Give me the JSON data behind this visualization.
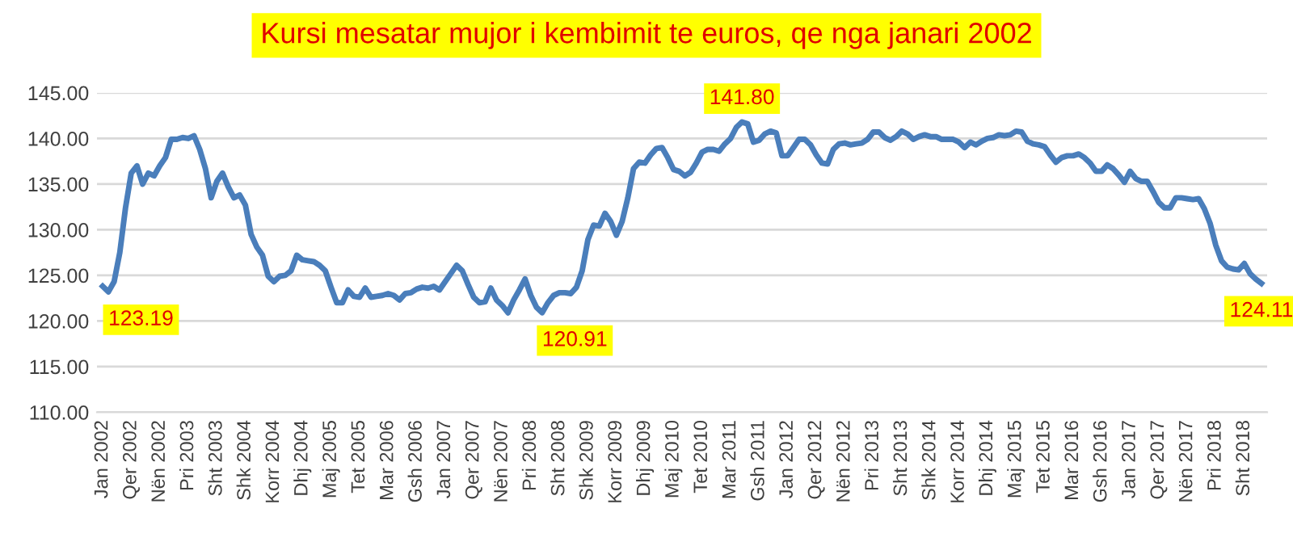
{
  "chart_data": {
    "type": "line",
    "title": "Kursi mesatar mujor i kembimit te euros, qe nga janari 2002",
    "categories": [
      "Jan 2002",
      null,
      null,
      null,
      null,
      "Qer 2002",
      null,
      null,
      null,
      null,
      "Nën 2002",
      null,
      null,
      null,
      null,
      "Pri 2003",
      null,
      null,
      null,
      null,
      "Sht 2003",
      null,
      null,
      null,
      null,
      "Shk 2004",
      null,
      null,
      null,
      null,
      "Korr 2004",
      null,
      null,
      null,
      null,
      "Dhj 2004",
      null,
      null,
      null,
      null,
      "Maj 2005",
      null,
      null,
      null,
      null,
      "Tet 2005",
      null,
      null,
      null,
      null,
      "Mar 2006",
      null,
      null,
      null,
      null,
      "Gsh 2006",
      null,
      null,
      null,
      null,
      "Jan 2007",
      null,
      null,
      null,
      null,
      "Qer 2007",
      null,
      null,
      null,
      null,
      "Nën 2007",
      null,
      null,
      null,
      null,
      "Pri 2008",
      null,
      null,
      null,
      null,
      "Sht 2008",
      null,
      null,
      null,
      null,
      "Shk 2009",
      null,
      null,
      null,
      null,
      "Korr 2009",
      null,
      null,
      null,
      null,
      "Dhj 2009",
      null,
      null,
      null,
      null,
      "Maj 2010",
      null,
      null,
      null,
      null,
      "Tet 2010",
      null,
      null,
      null,
      null,
      "Mar 2011",
      null,
      null,
      null,
      null,
      "Gsh 2011",
      null,
      null,
      null,
      null,
      "Jan 2012",
      null,
      null,
      null,
      null,
      "Qer 2012",
      null,
      null,
      null,
      null,
      "Nën 2012",
      null,
      null,
      null,
      null,
      "Pri 2013",
      null,
      null,
      null,
      null,
      "Sht 2013",
      null,
      null,
      null,
      null,
      "Shk 2014",
      null,
      null,
      null,
      null,
      "Korr 2014",
      null,
      null,
      null,
      null,
      "Dhj 2014",
      null,
      null,
      null,
      null,
      "Maj 2015",
      null,
      null,
      null,
      null,
      "Tet 2015",
      null,
      null,
      null,
      null,
      "Mar 2016",
      null,
      null,
      null,
      null,
      "Gsh 2016",
      null,
      null,
      null,
      null,
      "Jan 2017",
      null,
      null,
      null,
      null,
      "Qer 2017",
      null,
      null,
      null,
      null,
      "Nën 2017",
      null,
      null,
      null,
      null,
      "Pri 2018",
      null,
      null,
      null,
      null,
      "Sht 2018",
      null,
      null,
      null
    ],
    "series": [
      {
        "color": "#4a7ebb",
        "values": [
          123.8,
          123.19,
          124.3,
          127.5,
          132.4,
          136.2,
          137.0,
          135.0,
          136.2,
          135.9,
          137.0,
          137.9,
          139.9,
          139.9,
          140.1,
          140.0,
          140.3,
          138.8,
          136.7,
          133.5,
          135.3,
          136.2,
          134.7,
          133.5,
          133.8,
          132.7,
          129.5,
          128.1,
          127.2,
          124.9,
          124.3,
          124.9,
          125.0,
          125.5,
          127.2,
          126.7,
          126.6,
          126.5,
          126.1,
          125.5,
          123.7,
          122.0,
          122.0,
          123.4,
          122.7,
          122.6,
          123.6,
          122.6,
          122.7,
          122.8,
          123.0,
          122.8,
          122.3,
          123.0,
          123.1,
          123.5,
          123.7,
          123.6,
          123.8,
          123.4,
          124.3,
          125.2,
          126.1,
          125.5,
          124.0,
          122.6,
          122.0,
          122.1,
          123.6,
          122.3,
          121.7,
          120.9,
          122.3,
          123.4,
          124.6,
          122.8,
          121.5,
          120.91,
          122.0,
          122.8,
          123.1,
          123.1,
          123.0,
          123.7,
          125.5,
          128.9,
          130.5,
          130.4,
          131.8,
          130.9,
          129.4,
          130.9,
          133.5,
          136.7,
          137.4,
          137.3,
          138.2,
          138.9,
          139.0,
          137.9,
          136.6,
          136.4,
          135.9,
          136.3,
          137.3,
          138.5,
          138.8,
          138.8,
          138.6,
          139.4,
          140.0,
          141.2,
          141.8,
          141.6,
          139.6,
          139.8,
          140.5,
          140.8,
          140.6,
          138.1,
          138.1,
          139.0,
          139.9,
          139.9,
          139.3,
          138.2,
          137.3,
          137.2,
          138.8,
          139.4,
          139.5,
          139.3,
          139.4,
          139.5,
          139.9,
          140.7,
          140.7,
          140.1,
          139.8,
          140.2,
          140.8,
          140.5,
          139.9,
          140.2,
          140.4,
          140.2,
          140.2,
          139.9,
          139.9,
          139.9,
          139.6,
          139.0,
          139.6,
          139.3,
          139.7,
          140.0,
          140.1,
          140.4,
          140.3,
          140.4,
          140.8,
          140.7,
          139.7,
          139.4,
          139.3,
          139.1,
          138.2,
          137.4,
          137.9,
          138.1,
          138.1,
          138.3,
          137.9,
          137.3,
          136.4,
          136.4,
          137.1,
          136.7,
          136.0,
          135.2,
          136.4,
          135.6,
          135.3,
          135.3,
          134.2,
          133.0,
          132.4,
          132.4,
          133.5,
          133.5,
          133.4,
          133.3,
          133.4,
          132.3,
          130.7,
          128.3,
          126.6,
          125.9,
          125.7,
          125.6,
          126.3,
          125.2,
          124.6,
          124.11
        ],
        "value_labels": [
          null,
          "123.19",
          null,
          null,
          null,
          null,
          null,
          null,
          null,
          null,
          null,
          null,
          null,
          null,
          null,
          null,
          null,
          null,
          null,
          null,
          null,
          null,
          null,
          null,
          null,
          null,
          null,
          null,
          null,
          null,
          null,
          null,
          null,
          null,
          null,
          null,
          null,
          null,
          null,
          null,
          null,
          null,
          null,
          null,
          null,
          null,
          null,
          null,
          null,
          null,
          null,
          null,
          null,
          null,
          null,
          null,
          null,
          null,
          null,
          null,
          null,
          null,
          null,
          null,
          null,
          null,
          null,
          null,
          null,
          null,
          null,
          null,
          null,
          null,
          null,
          null,
          null,
          "120.91",
          null,
          null,
          null,
          null,
          null,
          null,
          null,
          null,
          null,
          null,
          null,
          null,
          null,
          null,
          null,
          null,
          null,
          null,
          null,
          null,
          null,
          null,
          null,
          null,
          null,
          null,
          null,
          null,
          null,
          null,
          null,
          null,
          null,
          null,
          "141.80",
          null,
          null,
          null,
          null,
          null,
          null,
          null,
          null,
          null,
          null,
          null,
          null,
          null,
          null,
          null,
          null,
          null,
          null,
          null,
          null,
          null,
          null,
          null,
          null,
          null,
          null,
          null,
          null,
          null,
          null,
          null,
          null,
          null,
          null,
          null,
          null,
          null,
          null,
          null,
          null,
          null,
          null,
          null,
          null,
          null,
          null,
          null,
          null,
          null,
          null,
          null,
          null,
          null,
          null,
          null,
          null,
          null,
          null,
          null,
          null,
          null,
          null,
          null,
          null,
          null,
          null,
          null,
          null,
          null,
          null,
          null,
          null,
          null,
          null,
          null,
          null,
          null,
          null,
          null,
          null,
          null,
          null,
          null,
          null,
          null,
          null,
          null,
          null,
          null,
          null,
          "124.11"
        ]
      }
    ],
    "ylim": [
      110,
      145
    ],
    "yticks": [
      {
        "value": 110,
        "label": "110.00"
      },
      {
        "value": 115,
        "label": "115.00"
      },
      {
        "value": 120,
        "label": "120.00"
      },
      {
        "value": 125,
        "label": "125.00"
      },
      {
        "value": 130,
        "label": "130.00"
      },
      {
        "value": 135,
        "label": "135.00"
      },
      {
        "value": 140,
        "label": "140.00"
      },
      {
        "value": 145,
        "label": "145.00"
      }
    ],
    "grid": "y",
    "legend": false,
    "marker": "none",
    "line_style": "solid"
  }
}
